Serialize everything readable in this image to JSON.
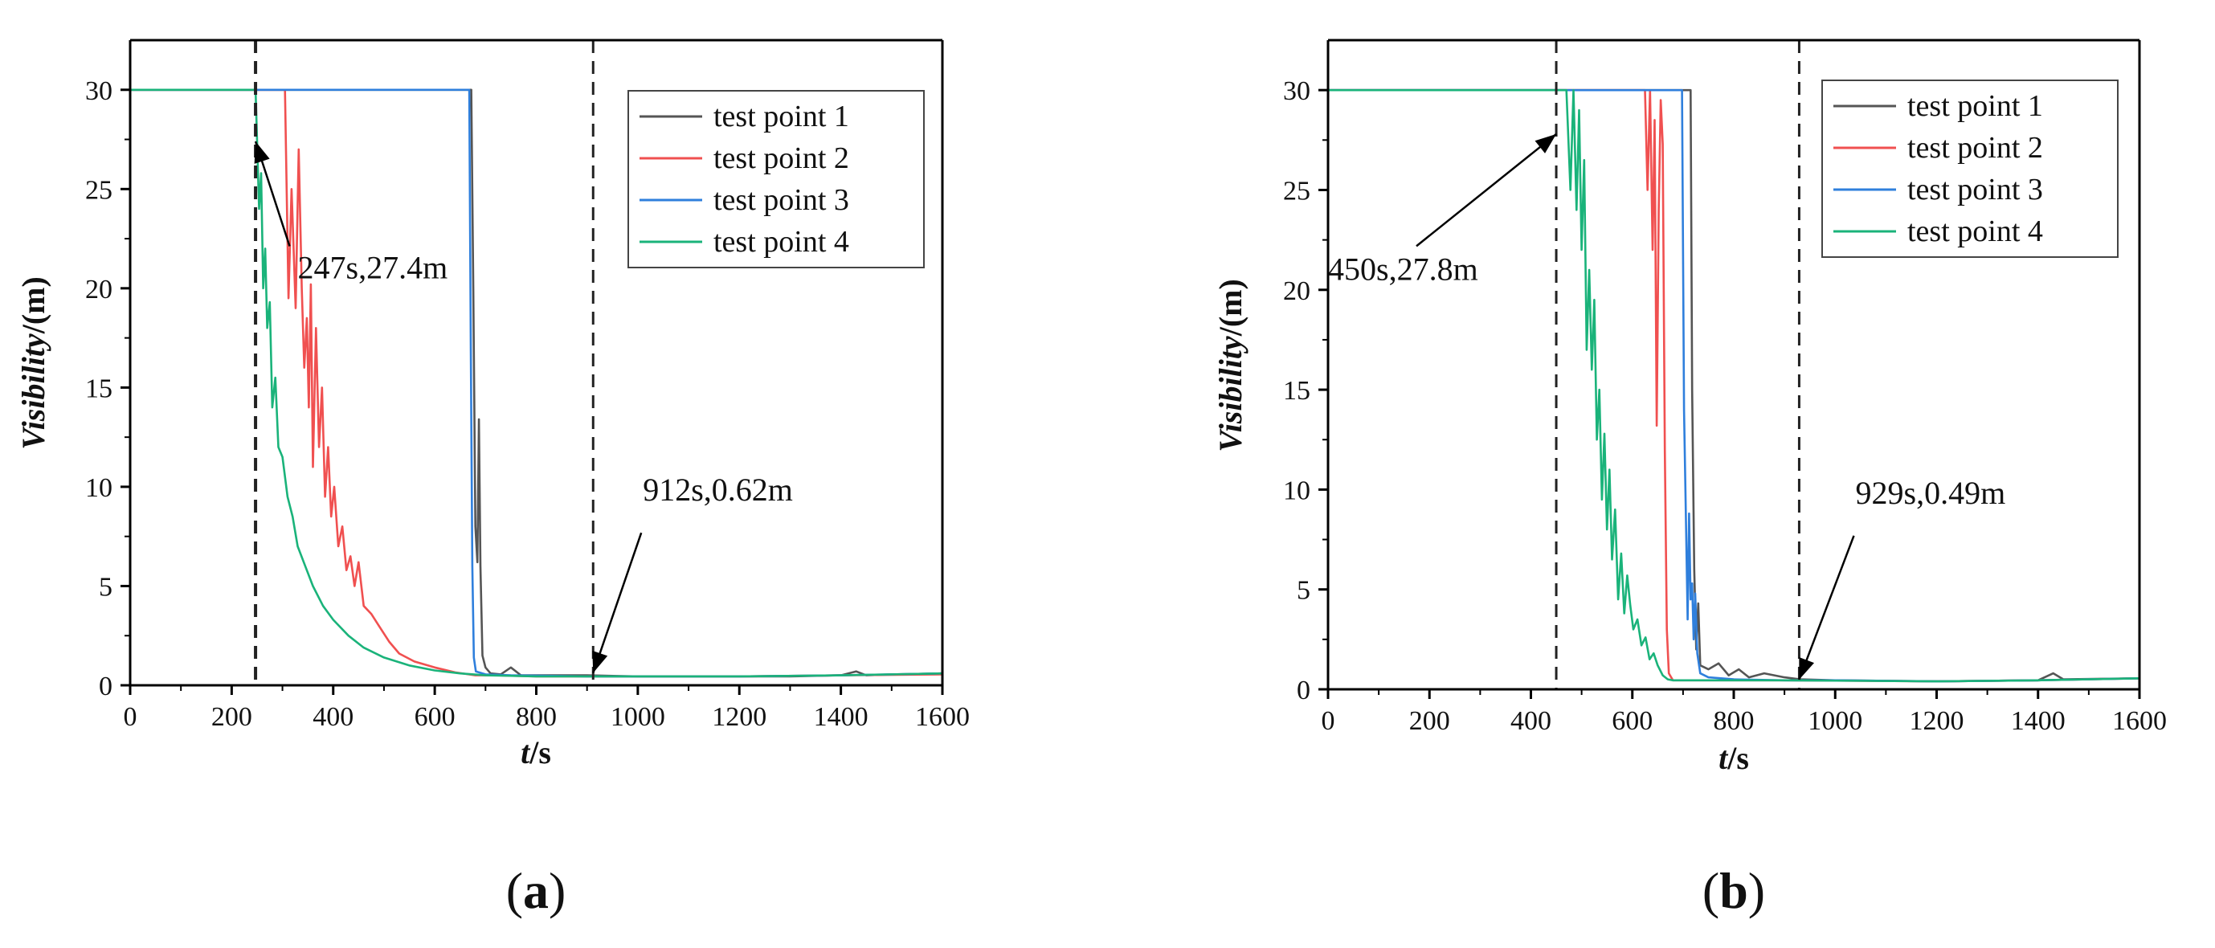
{
  "chart_data": [
    {
      "type": "line",
      "panel_label": "a",
      "ylabel_italic": "Visibility",
      "ylabel_unit": "/(m)",
      "xlabel_italic": "t",
      "xlabel_unit": "/s",
      "xlim": [
        0,
        1600
      ],
      "ylim": [
        0,
        32.5
      ],
      "xticks": [
        "0",
        "200",
        "400",
        "600",
        "800",
        "1000",
        "1200",
        "1400",
        "1600"
      ],
      "yticks": [
        "0",
        "5",
        "10",
        "15",
        "20",
        "25",
        "30"
      ],
      "legend_position": "top-right",
      "vlines": [
        247,
        912
      ],
      "annotations": [
        {
          "text": "247s,27.4m",
          "point": [
            247,
            27.4
          ],
          "text_at": [
            330,
            20.5
          ]
        },
        {
          "text": "912s,0.62m",
          "point": [
            912,
            0.62
          ],
          "text_at": [
            1010,
            9.3
          ]
        }
      ],
      "series": [
        {
          "name": "test point 1",
          "color": "#555555",
          "points": [
            [
              0,
              30
            ],
            [
              672,
              30
            ],
            [
              676,
              20
            ],
            [
              680,
              8
            ],
            [
              684,
              6.2
            ],
            [
              687,
              13.4
            ],
            [
              690,
              6
            ],
            [
              694,
              1.5
            ],
            [
              700,
              0.9
            ],
            [
              710,
              0.6
            ],
            [
              730,
              0.55
            ],
            [
              750,
              0.9
            ],
            [
              770,
              0.5
            ],
            [
              800,
              0.5
            ],
            [
              900,
              0.5
            ],
            [
              1000,
              0.45
            ],
            [
              1100,
              0.45
            ],
            [
              1200,
              0.45
            ],
            [
              1300,
              0.45
            ],
            [
              1400,
              0.5
            ],
            [
              1430,
              0.7
            ],
            [
              1450,
              0.5
            ],
            [
              1500,
              0.55
            ],
            [
              1600,
              0.6
            ]
          ]
        },
        {
          "name": "test point 2",
          "color": "#f05050",
          "points": [
            [
              0,
              30
            ],
            [
              305,
              30
            ],
            [
              312,
              19.5
            ],
            [
              318,
              25
            ],
            [
              326,
              19
            ],
            [
              332,
              27
            ],
            [
              338,
              20
            ],
            [
              343,
              16
            ],
            [
              348,
              18.5
            ],
            [
              352,
              14
            ],
            [
              356,
              20.2
            ],
            [
              360,
              11
            ],
            [
              366,
              18
            ],
            [
              372,
              12
            ],
            [
              378,
              15
            ],
            [
              384,
              9.5
            ],
            [
              390,
              12
            ],
            [
              396,
              8.5
            ],
            [
              402,
              10
            ],
            [
              410,
              7
            ],
            [
              418,
              8
            ],
            [
              426,
              5.8
            ],
            [
              434,
              6.5
            ],
            [
              442,
              5
            ],
            [
              450,
              6.2
            ],
            [
              460,
              4
            ],
            [
              475,
              3.6
            ],
            [
              490,
              3
            ],
            [
              510,
              2.2
            ],
            [
              530,
              1.6
            ],
            [
              560,
              1.2
            ],
            [
              600,
              0.9
            ],
            [
              640,
              0.65
            ],
            [
              680,
              0.5
            ],
            [
              720,
              0.5
            ],
            [
              800,
              0.45
            ],
            [
              900,
              0.45
            ],
            [
              1000,
              0.45
            ],
            [
              1200,
              0.45
            ],
            [
              1400,
              0.5
            ],
            [
              1600,
              0.55
            ]
          ]
        },
        {
          "name": "test point 3",
          "color": "#2f7fdc",
          "points": [
            [
              0,
              30
            ],
            [
              668,
              30
            ],
            [
              671,
              17
            ],
            [
              674,
              6
            ],
            [
              677,
              1.4
            ],
            [
              681,
              0.7
            ],
            [
              700,
              0.55
            ],
            [
              750,
              0.5
            ],
            [
              900,
              0.45
            ],
            [
              1000,
              0.45
            ],
            [
              1200,
              0.45
            ],
            [
              1400,
              0.5
            ],
            [
              1600,
              0.6
            ]
          ]
        },
        {
          "name": "test point 4",
          "color": "#1ab37a",
          "points": [
            [
              0,
              30
            ],
            [
              247,
              30
            ],
            [
              250,
              27.4
            ],
            [
              254,
              24
            ],
            [
              258,
              25.8
            ],
            [
              262,
              20
            ],
            [
              266,
              22
            ],
            [
              270,
              18
            ],
            [
              275,
              19.3
            ],
            [
              280,
              14
            ],
            [
              286,
              15.5
            ],
            [
              292,
              12
            ],
            [
              300,
              11.5
            ],
            [
              310,
              9.5
            ],
            [
              320,
              8.5
            ],
            [
              330,
              7
            ],
            [
              345,
              6
            ],
            [
              360,
              5
            ],
            [
              380,
              4
            ],
            [
              400,
              3.3
            ],
            [
              430,
              2.5
            ],
            [
              460,
              1.9
            ],
            [
              500,
              1.4
            ],
            [
              550,
              1
            ],
            [
              600,
              0.75
            ],
            [
              650,
              0.6
            ],
            [
              700,
              0.5
            ],
            [
              800,
              0.45
            ],
            [
              1000,
              0.45
            ],
            [
              1200,
              0.45
            ],
            [
              1400,
              0.5
            ],
            [
              1600,
              0.6
            ]
          ]
        }
      ]
    },
    {
      "type": "line",
      "panel_label": "b",
      "ylabel_italic": "Visibility",
      "ylabel_unit": "/(m)",
      "xlabel_italic": "t",
      "xlabel_unit": "/s",
      "xlim": [
        0,
        1600
      ],
      "ylim": [
        0,
        32.5
      ],
      "xticks": [
        "0",
        "200",
        "400",
        "600",
        "800",
        "1000",
        "1200",
        "1400",
        "1600"
      ],
      "yticks": [
        "0",
        "5",
        "10",
        "15",
        "20",
        "25",
        "30"
      ],
      "legend_position": "top-right",
      "vlines": [
        450,
        929
      ],
      "annotations": [
        {
          "text": "450s,27.8m",
          "point": [
            450,
            27.8
          ],
          "text_at": [
            0,
            20.5
          ]
        },
        {
          "text": "929s,0.49m",
          "point": [
            929,
            0.49
          ],
          "text_at": [
            1040,
            9.3
          ]
        }
      ],
      "series": [
        {
          "name": "test point 1",
          "color": "#555555",
          "points": [
            [
              0,
              30
            ],
            [
              715,
              30
            ],
            [
              718,
              15
            ],
            [
              722,
              6
            ],
            [
              726,
              2
            ],
            [
              730,
              4.3
            ],
            [
              734,
              1.2
            ],
            [
              750,
              1
            ],
            [
              770,
              1.3
            ],
            [
              790,
              0.7
            ],
            [
              810,
              1
            ],
            [
              830,
              0.6
            ],
            [
              860,
              0.8
            ],
            [
              900,
              0.6
            ],
            [
              930,
              0.5
            ],
            [
              1000,
              0.45
            ],
            [
              1200,
              0.4
            ],
            [
              1400,
              0.45
            ],
            [
              1430,
              0.8
            ],
            [
              1450,
              0.5
            ],
            [
              1600,
              0.55
            ]
          ]
        },
        {
          "name": "test point 2",
          "color": "#f05050",
          "points": [
            [
              0,
              30
            ],
            [
              625,
              30
            ],
            [
              630,
              25
            ],
            [
              635,
              30
            ],
            [
              640,
              22
            ],
            [
              644,
              28.5
            ],
            [
              648,
              13.2
            ],
            [
              652,
              24
            ],
            [
              656,
              29.5
            ],
            [
              660,
              27.3
            ],
            [
              664,
              12
            ],
            [
              668,
              3
            ],
            [
              672,
              0.8
            ],
            [
              680,
              0.45
            ],
            [
              750,
              0.45
            ],
            [
              900,
              0.45
            ],
            [
              1200,
              0.4
            ],
            [
              1400,
              0.45
            ],
            [
              1600,
              0.55
            ]
          ]
        },
        {
          "name": "test point 3",
          "color": "#2f7fdc",
          "points": [
            [
              0,
              30
            ],
            [
              698,
              30
            ],
            [
              702,
              14
            ],
            [
              706,
              8
            ],
            [
              709,
              3.5
            ],
            [
              712,
              8.8
            ],
            [
              715,
              4.5
            ],
            [
              718,
              5.3
            ],
            [
              721,
              2.5
            ],
            [
              724,
              4.8
            ],
            [
              728,
              1.8
            ],
            [
              734,
              0.8
            ],
            [
              750,
              0.6
            ],
            [
              800,
              0.5
            ],
            [
              900,
              0.45
            ],
            [
              1000,
              0.45
            ],
            [
              1200,
              0.4
            ],
            [
              1400,
              0.45
            ],
            [
              1600,
              0.55
            ]
          ]
        },
        {
          "name": "test point 4",
          "color": "#1ab37a",
          "points": [
            [
              0,
              30
            ],
            [
              450,
              30
            ],
            [
              470,
              30
            ],
            [
              478,
              25
            ],
            [
              484,
              30
            ],
            [
              490,
              24
            ],
            [
              495,
              29
            ],
            [
              500,
              22
            ],
            [
              505,
              26.5
            ],
            [
              510,
              17
            ],
            [
              515,
              21
            ],
            [
              520,
              16
            ],
            [
              525,
              19.5
            ],
            [
              530,
              12.5
            ],
            [
              535,
              15
            ],
            [
              540,
              9.5
            ],
            [
              545,
              12.8
            ],
            [
              550,
              8
            ],
            [
              555,
              11
            ],
            [
              560,
              6.5
            ],
            [
              566,
              9
            ],
            [
              572,
              4.5
            ],
            [
              578,
              6.8
            ],
            [
              584,
              3.8
            ],
            [
              590,
              5.7
            ],
            [
              596,
              4.2
            ],
            [
              602,
              3
            ],
            [
              610,
              3.5
            ],
            [
              618,
              2.2
            ],
            [
              626,
              2.6
            ],
            [
              634,
              1.5
            ],
            [
              642,
              1.8
            ],
            [
              650,
              1.2
            ],
            [
              660,
              0.7
            ],
            [
              670,
              0.5
            ],
            [
              680,
              0.45
            ],
            [
              750,
              0.45
            ],
            [
              900,
              0.45
            ],
            [
              1200,
              0.4
            ],
            [
              1400,
              0.45
            ],
            [
              1600,
              0.55
            ]
          ]
        }
      ]
    }
  ]
}
